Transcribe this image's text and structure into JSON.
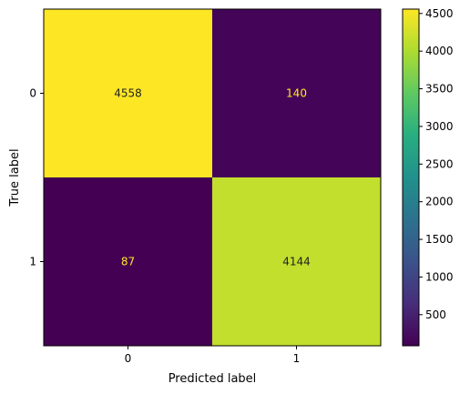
{
  "chart_data": {
    "type": "heatmap",
    "title": "",
    "xlabel": "Predicted label",
    "ylabel": "True label",
    "x_categories": [
      "0",
      "1"
    ],
    "y_categories": [
      "0",
      "1"
    ],
    "matrix": [
      [
        4558,
        140
      ],
      [
        87,
        4144
      ]
    ],
    "colormap": "viridis",
    "colorbar": {
      "min": 87,
      "max": 4558,
      "ticks": [
        500,
        1000,
        1500,
        2000,
        2500,
        3000,
        3500,
        4000,
        4500
      ]
    },
    "cell_label_colors": {
      "on_dark": "#fde725",
      "on_light": "#222222"
    },
    "grid": false
  }
}
